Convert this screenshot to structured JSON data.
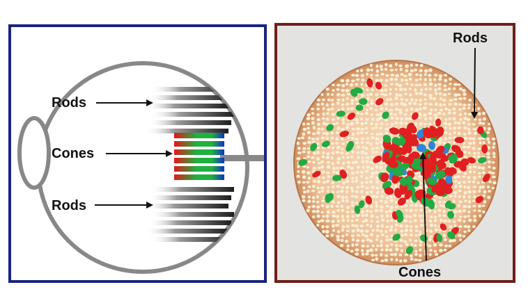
{
  "left_diagram": {
    "label_rods_top": "Rods",
    "label_cones": "Cones",
    "label_rods_bottom": "Rods"
  },
  "right_diagram": {
    "label_rods": "Rods",
    "label_cones": "Cones"
  },
  "colors": {
    "left_border": "#1a237e",
    "right_border": "#6d1f17",
    "eye_outline": "#888888",
    "rod_cell": "#2b2b2b",
    "cone_red": "#e02020",
    "cone_green": "#22aa44",
    "cone_blue": "#1133cc",
    "retina_background": "#f0c9a4",
    "retina_rod_dot": "#fbeed7"
  }
}
